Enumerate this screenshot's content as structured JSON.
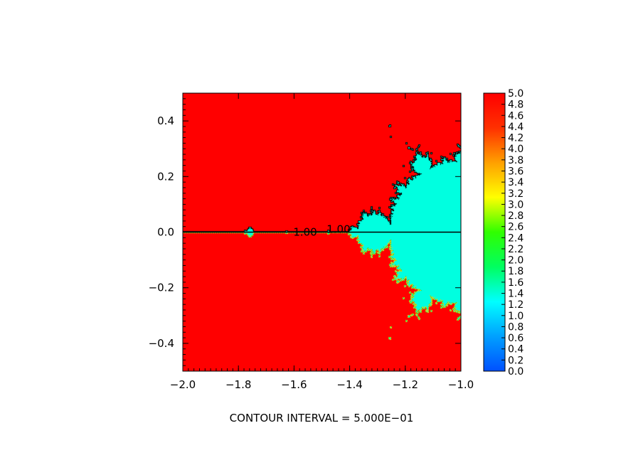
{
  "chart_data": {
    "type": "heatmap",
    "title": "",
    "xlabel": "",
    "ylabel": "",
    "xlim": [
      -2.0,
      -1.0
    ],
    "ylim": [
      -0.5,
      0.5
    ],
    "x_ticks": [
      "−2.0",
      "−1.8",
      "−1.6",
      "−1.4",
      "−1.2",
      "−1.0"
    ],
    "x_tick_values": [
      -2.0,
      -1.8,
      -1.6,
      -1.4,
      -1.2,
      -1.0
    ],
    "y_ticks": [
      "−0.4",
      "−0.2",
      "0.0",
      "0.2",
      "0.4"
    ],
    "y_tick_values": [
      -0.4,
      -0.2,
      0.0,
      0.2,
      0.4
    ],
    "colorbar": {
      "min": 0.0,
      "max": 5.0,
      "ticks": [
        "0.0",
        "0.2",
        "0.4",
        "0.6",
        "0.8",
        "1.0",
        "1.2",
        "1.4",
        "1.6",
        "1.8",
        "2.0",
        "2.2",
        "2.4",
        "2.6",
        "2.8",
        "3.0",
        "3.2",
        "3.4",
        "3.6",
        "3.8",
        "4.0",
        "4.2",
        "4.4",
        "4.6",
        "4.8",
        "5.0"
      ],
      "colors": [
        "#0050ff",
        "#00a0ff",
        "#00ffff",
        "#00ff60",
        "#30ff00",
        "#ffff00",
        "#ffa000",
        "#ff3000",
        "#ff0000"
      ]
    },
    "field": "escape value of the Mandelbrot set; value 1.0 inside the set, 5.0 outside",
    "contour_labels": [
      {
        "text": "1.00",
        "x": -1.56,
        "y": 0.0
      },
      {
        "text": "1.00",
        "x": -1.44,
        "y": 0.01
      }
    ],
    "caption": "CONTOUR INTERVAL = 5.000E−01",
    "colors": {
      "outside": "#ff0000",
      "inside": "#00ffe0",
      "contour": "#000000"
    }
  }
}
